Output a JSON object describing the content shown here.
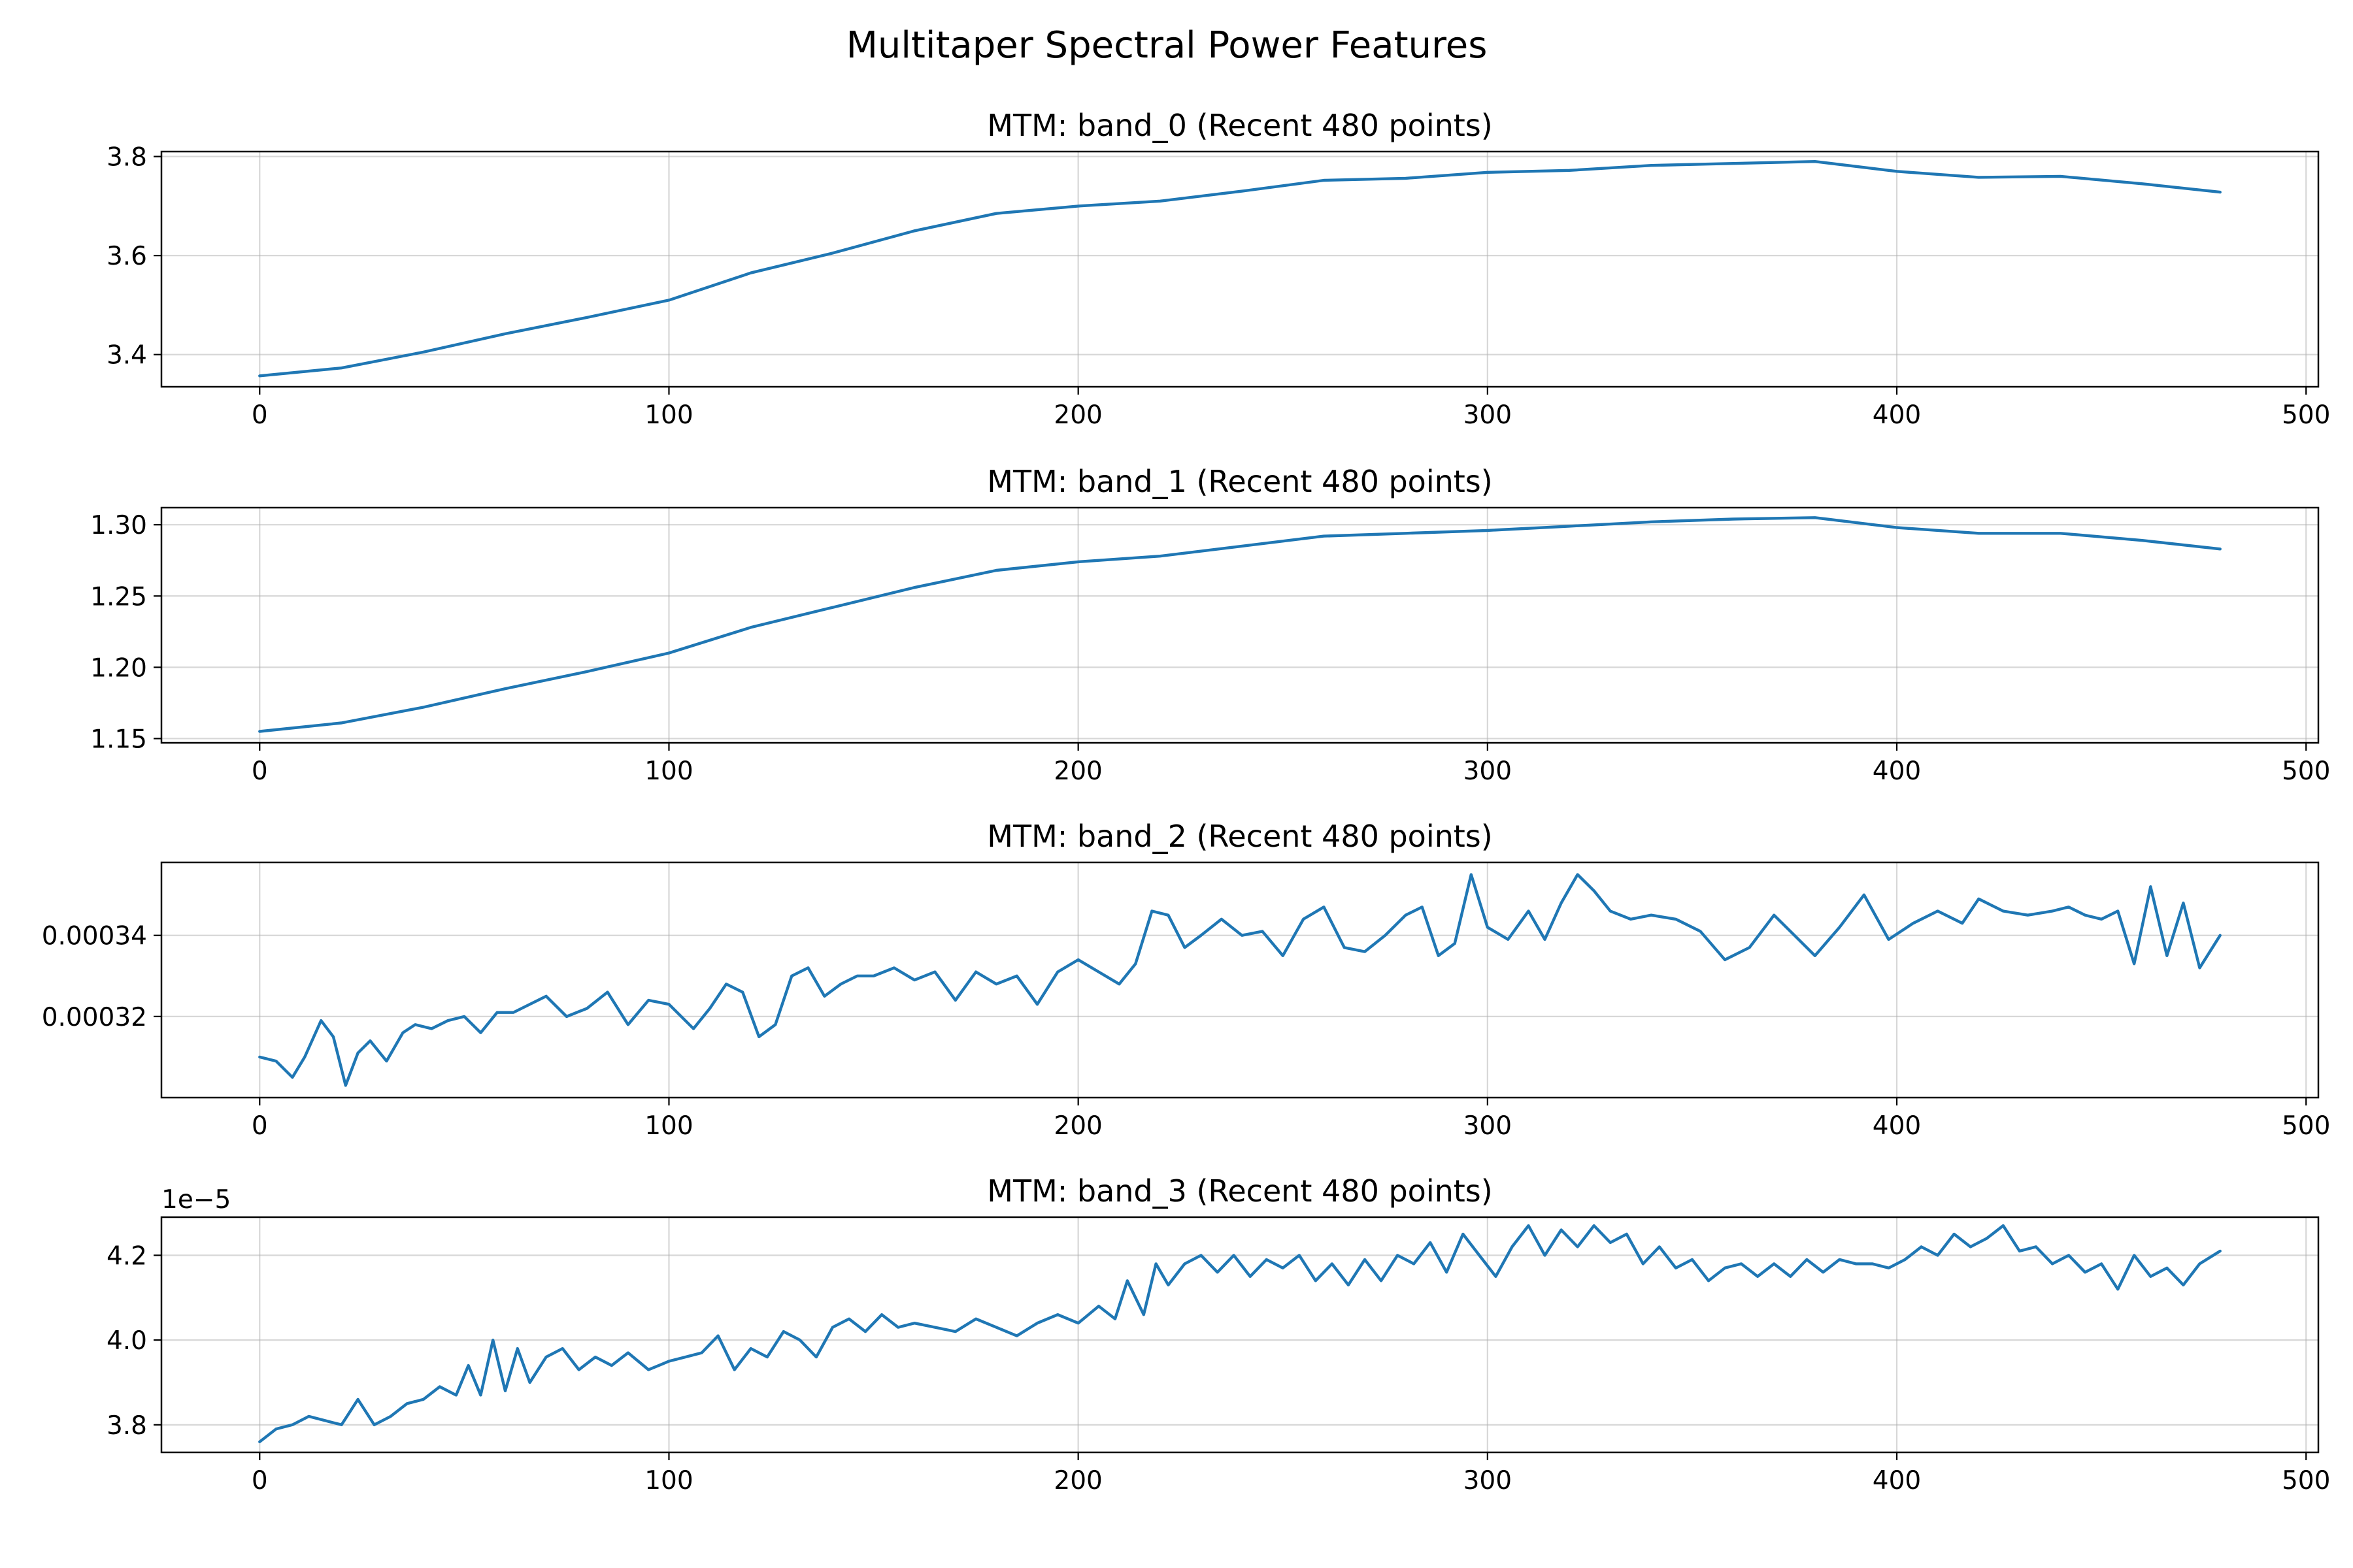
{
  "figure": {
    "suptitle": "Multitaper Spectral Power Features",
    "line_color": "#1f77b4"
  },
  "chart_data": [
    {
      "type": "line",
      "title": "MTM: band_0 (Recent 480 points)",
      "xlabel": "",
      "ylabel": "",
      "xlim": [
        -24,
        503
      ],
      "ylim": [
        3.335,
        3.81
      ],
      "xticks": [
        0,
        100,
        200,
        300,
        400,
        500
      ],
      "xtick_labels": [
        "0",
        "100",
        "200",
        "300",
        "400",
        "500"
      ],
      "yticks": [
        3.4,
        3.6,
        3.8
      ],
      "ytick_labels": [
        "3.4",
        "3.6",
        "3.8"
      ],
      "offset_label": "",
      "grid": true,
      "series": [
        {
          "x": [
            0,
            20,
            40,
            60,
            80,
            100,
            120,
            140,
            160,
            180,
            200,
            220,
            240,
            260,
            280,
            300,
            320,
            340,
            360,
            380,
            400,
            420,
            440,
            460,
            479
          ],
          "y": [
            3.357,
            3.373,
            3.405,
            3.442,
            3.475,
            3.51,
            3.565,
            3.605,
            3.65,
            3.685,
            3.7,
            3.71,
            3.73,
            3.752,
            3.756,
            3.768,
            3.772,
            3.782,
            3.786,
            3.79,
            3.77,
            3.758,
            3.76,
            3.745,
            3.728
          ]
        }
      ]
    },
    {
      "type": "line",
      "title": "MTM: band_1 (Recent 480 points)",
      "xlabel": "",
      "ylabel": "",
      "xlim": [
        -24,
        503
      ],
      "ylim": [
        1.147,
        1.312
      ],
      "xticks": [
        0,
        100,
        200,
        300,
        400,
        500
      ],
      "xtick_labels": [
        "0",
        "100",
        "200",
        "300",
        "400",
        "500"
      ],
      "yticks": [
        1.15,
        1.2,
        1.25,
        1.3
      ],
      "ytick_labels": [
        "1.15",
        "1.20",
        "1.25",
        "1.30"
      ],
      "offset_label": "",
      "grid": true,
      "series": [
        {
          "x": [
            0,
            20,
            40,
            60,
            80,
            100,
            120,
            140,
            160,
            180,
            200,
            220,
            240,
            260,
            280,
            300,
            320,
            340,
            360,
            380,
            400,
            420,
            440,
            460,
            479
          ],
          "y": [
            1.155,
            1.161,
            1.172,
            1.185,
            1.197,
            1.21,
            1.228,
            1.242,
            1.256,
            1.268,
            1.274,
            1.278,
            1.285,
            1.292,
            1.294,
            1.296,
            1.299,
            1.302,
            1.304,
            1.305,
            1.298,
            1.294,
            1.294,
            1.289,
            1.283
          ]
        }
      ]
    },
    {
      "type": "line",
      "title": "MTM: band_2 (Recent 480 points)",
      "xlabel": "",
      "ylabel": "",
      "xlim": [
        -24,
        503
      ],
      "ylim": [
        0.0003,
        0.000358
      ],
      "xticks": [
        0,
        100,
        200,
        300,
        400,
        500
      ],
      "xtick_labels": [
        "0",
        "100",
        "200",
        "300",
        "400",
        "500"
      ],
      "yticks": [
        0.00032,
        0.00034
      ],
      "ytick_labels": [
        "0.00032",
        "0.00034"
      ],
      "offset_label": "",
      "grid": true,
      "series": [
        {
          "x": [
            0,
            4,
            8,
            11,
            15,
            18,
            21,
            24,
            27,
            31,
            35,
            38,
            42,
            46,
            50,
            54,
            58,
            62,
            66,
            70,
            75,
            80,
            85,
            90,
            95,
            100,
            106,
            110,
            114,
            118,
            122,
            126,
            130,
            134,
            138,
            142,
            146,
            150,
            155,
            160,
            165,
            170,
            175,
            180,
            185,
            190,
            195,
            200,
            205,
            210,
            214,
            218,
            222,
            226,
            230,
            235,
            240,
            245,
            250,
            255,
            260,
            265,
            270,
            275,
            280,
            284,
            288,
            292,
            296,
            300,
            305,
            310,
            314,
            318,
            322,
            326,
            330,
            335,
            340,
            346,
            352,
            358,
            364,
            370,
            375,
            380,
            386,
            392,
            398,
            404,
            410,
            416,
            420,
            426,
            432,
            438,
            442,
            446,
            450,
            454,
            458,
            462,
            466,
            470,
            474,
            479
          ],
          "y": [
            0.00031,
            0.000309,
            0.000305,
            0.00031,
            0.000319,
            0.000315,
            0.000303,
            0.000311,
            0.000314,
            0.000309,
            0.000316,
            0.000318,
            0.000317,
            0.000319,
            0.00032,
            0.000316,
            0.000321,
            0.000321,
            0.000323,
            0.000325,
            0.00032,
            0.000322,
            0.000326,
            0.000318,
            0.000324,
            0.000323,
            0.000317,
            0.000322,
            0.000328,
            0.000326,
            0.000315,
            0.000318,
            0.00033,
            0.000332,
            0.000325,
            0.000328,
            0.00033,
            0.00033,
            0.000332,
            0.000329,
            0.000331,
            0.000324,
            0.000331,
            0.000328,
            0.00033,
            0.000323,
            0.000331,
            0.000334,
            0.000331,
            0.000328,
            0.000333,
            0.000346,
            0.000345,
            0.000337,
            0.00034,
            0.000344,
            0.00034,
            0.000341,
            0.000335,
            0.000344,
            0.000347,
            0.000337,
            0.000336,
            0.00034,
            0.000345,
            0.000347,
            0.000335,
            0.000338,
            0.000355,
            0.000342,
            0.000339,
            0.000346,
            0.000339,
            0.000348,
            0.000355,
            0.000351,
            0.000346,
            0.000344,
            0.000345,
            0.000344,
            0.000341,
            0.000334,
            0.000337,
            0.000345,
            0.00034,
            0.000335,
            0.000342,
            0.00035,
            0.000339,
            0.000343,
            0.000346,
            0.000343,
            0.000349,
            0.000346,
            0.000345,
            0.000346,
            0.000347,
            0.000345,
            0.000344,
            0.000346,
            0.000333,
            0.000352,
            0.000335,
            0.000348,
            0.000332,
            0.00034
          ]
        }
      ]
    },
    {
      "type": "line",
      "title": "MTM: band_3 (Recent 480 points)",
      "xlabel": "",
      "ylabel": "",
      "xlim": [
        -24,
        503
      ],
      "ylim": [
        3.735e-05,
        4.29e-05
      ],
      "xticks": [
        0,
        100,
        200,
        300,
        400,
        500
      ],
      "xtick_labels": [
        "0",
        "100",
        "200",
        "300",
        "400",
        "500"
      ],
      "yticks": [
        3.8e-05,
        4e-05,
        4.2e-05
      ],
      "ytick_labels": [
        "3.8",
        "4.0",
        "4.2"
      ],
      "offset_label": "1e−5",
      "grid": true,
      "series": [
        {
          "x": [
            0,
            4,
            8,
            12,
            16,
            20,
            24,
            28,
            32,
            36,
            40,
            44,
            48,
            51,
            54,
            57,
            60,
            63,
            66,
            70,
            74,
            78,
            82,
            86,
            90,
            95,
            100,
            104,
            108,
            112,
            116,
            120,
            124,
            128,
            132,
            136,
            140,
            144,
            148,
            152,
            156,
            160,
            165,
            170,
            175,
            180,
            185,
            190,
            195,
            200,
            205,
            209,
            212,
            216,
            219,
            222,
            226,
            230,
            234,
            238,
            242,
            246,
            250,
            254,
            258,
            262,
            266,
            270,
            274,
            278,
            282,
            286,
            290,
            294,
            298,
            302,
            306,
            310,
            314,
            318,
            322,
            326,
            330,
            334,
            338,
            342,
            346,
            350,
            354,
            358,
            362,
            366,
            370,
            374,
            378,
            382,
            386,
            390,
            394,
            398,
            402,
            406,
            410,
            414,
            418,
            422,
            426,
            430,
            434,
            438,
            442,
            446,
            450,
            454,
            458,
            462,
            466,
            470,
            474,
            479
          ],
          "y": [
            3.76e-05,
            3.79e-05,
            3.8e-05,
            3.82e-05,
            3.81e-05,
            3.8e-05,
            3.86e-05,
            3.8e-05,
            3.82e-05,
            3.85e-05,
            3.86e-05,
            3.89e-05,
            3.87e-05,
            3.94e-05,
            3.87e-05,
            4e-05,
            3.88e-05,
            3.98e-05,
            3.9e-05,
            3.96e-05,
            3.98e-05,
            3.93e-05,
            3.96e-05,
            3.94e-05,
            3.97e-05,
            3.93e-05,
            3.95e-05,
            3.96e-05,
            3.97e-05,
            4.01e-05,
            3.93e-05,
            3.98e-05,
            3.96e-05,
            4.02e-05,
            4e-05,
            3.96e-05,
            4.03e-05,
            4.05e-05,
            4.02e-05,
            4.06e-05,
            4.03e-05,
            4.04e-05,
            4.03e-05,
            4.02e-05,
            4.05e-05,
            4.03e-05,
            4.01e-05,
            4.04e-05,
            4.06e-05,
            4.04e-05,
            4.08e-05,
            4.05e-05,
            4.14e-05,
            4.06e-05,
            4.18e-05,
            4.13e-05,
            4.18e-05,
            4.2e-05,
            4.16e-05,
            4.2e-05,
            4.15e-05,
            4.19e-05,
            4.17e-05,
            4.2e-05,
            4.14e-05,
            4.18e-05,
            4.13e-05,
            4.19e-05,
            4.14e-05,
            4.2e-05,
            4.18e-05,
            4.23e-05,
            4.16e-05,
            4.25e-05,
            4.2e-05,
            4.15e-05,
            4.22e-05,
            4.27e-05,
            4.2e-05,
            4.26e-05,
            4.22e-05,
            4.27e-05,
            4.23e-05,
            4.25e-05,
            4.18e-05,
            4.22e-05,
            4.17e-05,
            4.19e-05,
            4.14e-05,
            4.17e-05,
            4.18e-05,
            4.15e-05,
            4.18e-05,
            4.15e-05,
            4.19e-05,
            4.16e-05,
            4.19e-05,
            4.18e-05,
            4.18e-05,
            4.17e-05,
            4.19e-05,
            4.22e-05,
            4.2e-05,
            4.25e-05,
            4.22e-05,
            4.24e-05,
            4.27e-05,
            4.21e-05,
            4.22e-05,
            4.18e-05,
            4.2e-05,
            4.16e-05,
            4.18e-05,
            4.12e-05,
            4.2e-05,
            4.15e-05,
            4.17e-05,
            4.13e-05,
            4.18e-05,
            4.21e-05
          ]
        }
      ]
    }
  ]
}
